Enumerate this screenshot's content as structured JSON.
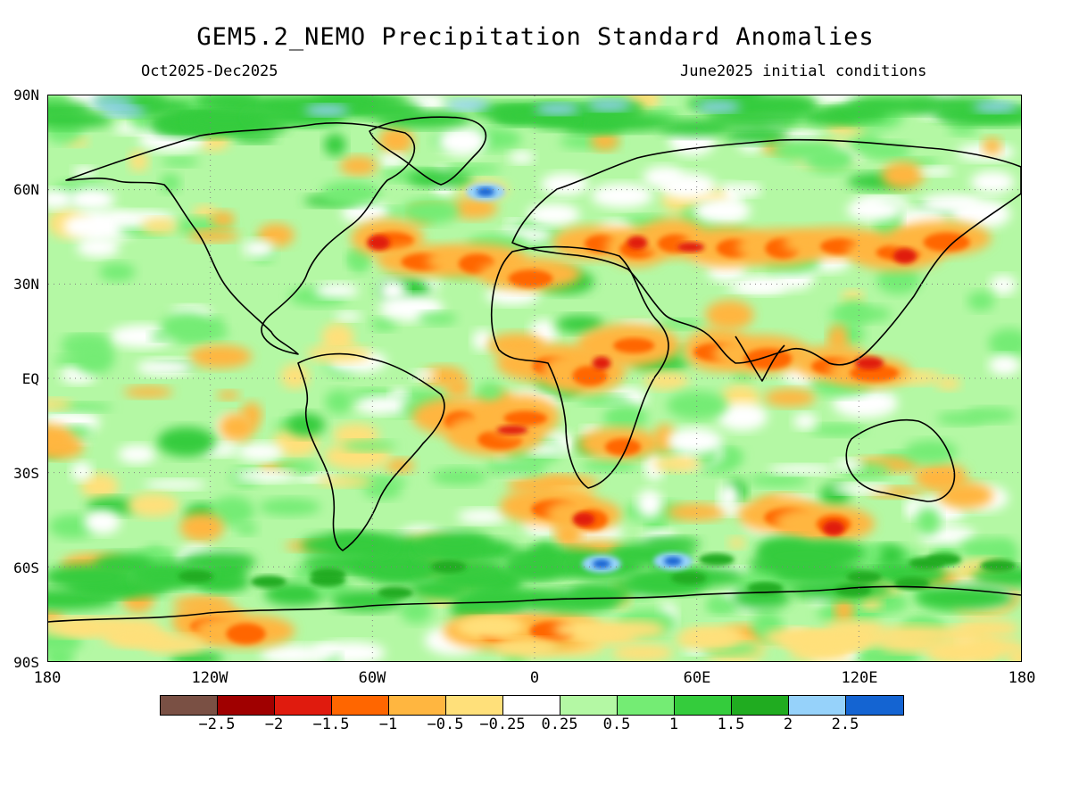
{
  "header": {
    "title": "GEM5.2_NEMO Precipitation Standard Anomalies",
    "period": "Oct2025-Dec2025",
    "initial_conditions": "June2025 initial conditions"
  },
  "map": {
    "lat_labels": [
      "90N",
      "60N",
      "30N",
      "EQ",
      "30S",
      "60S",
      "90S"
    ],
    "lon_labels": [
      "180",
      "120W",
      "60W",
      "0",
      "60E",
      "120E",
      "180"
    ],
    "gridline_style": "dotted"
  },
  "colorbar": {
    "colors": [
      "#7a5044",
      "#a00000",
      "#e01b0e",
      "#ff6600",
      "#ffb640",
      "#ffe07a",
      "#ffffff",
      "#b4f8a4",
      "#74ec74",
      "#34cc3c",
      "#20ac20",
      "#96d2fa",
      "#1464d2"
    ],
    "labels": [
      "-2.5",
      "-2",
      "-1.5",
      "-1",
      "-0.5",
      "-0.25",
      "0.25",
      "0.5",
      "1",
      "1.5",
      "2",
      "2.5"
    ]
  }
}
